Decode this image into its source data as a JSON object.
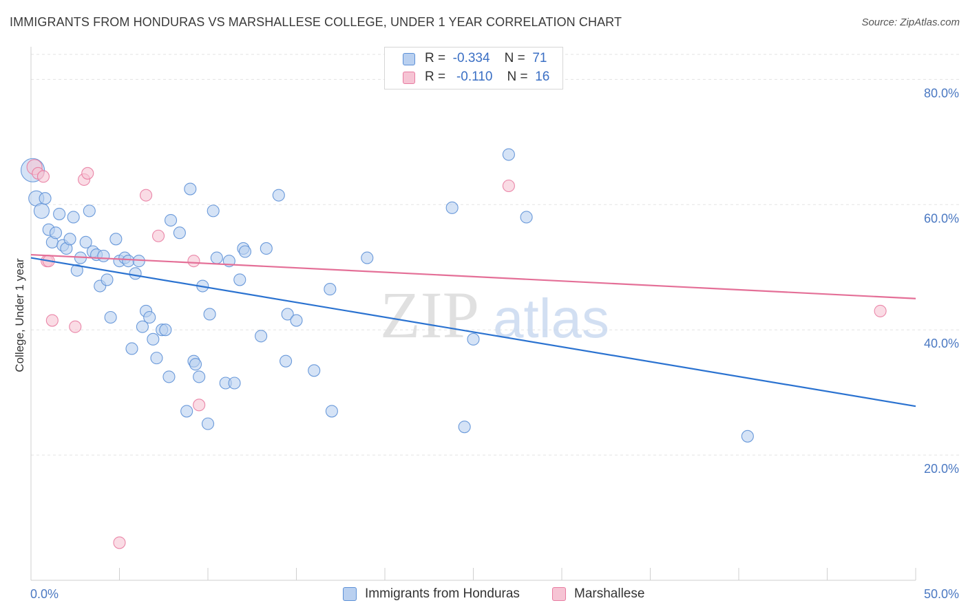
{
  "title": "IMMIGRANTS FROM HONDURAS VS MARSHALLESE COLLEGE, UNDER 1 YEAR CORRELATION CHART",
  "source": "Source: ZipAtlas.com",
  "watermark": {
    "zip": "ZIP",
    "atlas": "atlas"
  },
  "colors": {
    "blue": "#5b8fd6",
    "blue_fill": "#b9d0f0",
    "pink": "#e87aa0",
    "pink_fill": "#f6c4d4",
    "blue_line": "#2a72d0",
    "pink_line": "#e46f97",
    "tick": "#4a78c2"
  },
  "legend": {
    "rows": [
      {
        "r_label": "R =",
        "r_value": "-0.334",
        "n_label": "N =",
        "n_value": "71"
      },
      {
        "r_label": "R =",
        "r_value": "-0.110",
        "n_label": "N =",
        "n_value": "16"
      }
    ]
  },
  "chart_data": {
    "type": "scatter",
    "xlabel": "",
    "ylabel": "College, Under 1 year",
    "xlim": [
      0,
      50
    ],
    "ylim": [
      0,
      84
    ],
    "x_tick_labels": [
      "0.0%",
      "50.0%"
    ],
    "y_ticks": [
      20,
      40,
      60,
      80
    ],
    "y_tick_labels": [
      "20.0%",
      "40.0%",
      "60.0%",
      "80.0%"
    ],
    "grid": true,
    "legend_position": "bottom",
    "series": [
      {
        "name": "Immigrants from Honduras",
        "trend": {
          "x": [
            0,
            50
          ],
          "y": [
            51.5,
            27.8
          ]
        },
        "points": [
          [
            0.1,
            65.5,
            3
          ],
          [
            0.3,
            61.0,
            2
          ],
          [
            0.6,
            59.0,
            2
          ],
          [
            0.8,
            61.0,
            1
          ],
          [
            1.0,
            56.0,
            1
          ],
          [
            1.2,
            54.0,
            1
          ],
          [
            1.4,
            55.5,
            1
          ],
          [
            1.6,
            58.5,
            1
          ],
          [
            1.8,
            53.5,
            1
          ],
          [
            2.0,
            53.0,
            1
          ],
          [
            2.2,
            54.5,
            1
          ],
          [
            2.4,
            58.0,
            1
          ],
          [
            2.6,
            49.5,
            1
          ],
          [
            2.8,
            51.5,
            1
          ],
          [
            3.1,
            54.0,
            1
          ],
          [
            3.3,
            59.0,
            1
          ],
          [
            3.5,
            52.5,
            1
          ],
          [
            3.7,
            52.0,
            1
          ],
          [
            3.9,
            47.0,
            1
          ],
          [
            4.1,
            51.8,
            1
          ],
          [
            4.3,
            48.0,
            1
          ],
          [
            4.5,
            42.0,
            1
          ],
          [
            4.8,
            54.5,
            1
          ],
          [
            5.0,
            51.0,
            1
          ],
          [
            5.3,
            51.5,
            1
          ],
          [
            5.5,
            51.0,
            1
          ],
          [
            5.7,
            37.0,
            1
          ],
          [
            5.9,
            49.0,
            1
          ],
          [
            6.1,
            51.0,
            1
          ],
          [
            6.3,
            40.5,
            1
          ],
          [
            6.5,
            43.0,
            1
          ],
          [
            6.7,
            42.0,
            1
          ],
          [
            6.9,
            38.5,
            1
          ],
          [
            7.1,
            35.5,
            1
          ],
          [
            7.4,
            40.0,
            1
          ],
          [
            7.6,
            40.0,
            1
          ],
          [
            7.8,
            32.5,
            1
          ],
          [
            7.9,
            57.5,
            1
          ],
          [
            8.4,
            55.5,
            1
          ],
          [
            8.8,
            27.0,
            1
          ],
          [
            9.0,
            62.5,
            1
          ],
          [
            9.2,
            35.0,
            1
          ],
          [
            9.3,
            34.5,
            1
          ],
          [
            9.5,
            32.5,
            1
          ],
          [
            9.7,
            47.0,
            1
          ],
          [
            10.0,
            25.0,
            1
          ],
          [
            10.1,
            42.5,
            1
          ],
          [
            10.3,
            59.0,
            1
          ],
          [
            10.5,
            51.5,
            1
          ],
          [
            11.0,
            31.5,
            1
          ],
          [
            11.2,
            51.0,
            1
          ],
          [
            11.5,
            31.5,
            1
          ],
          [
            11.8,
            48.0,
            1
          ],
          [
            12.0,
            53.0,
            1
          ],
          [
            12.1,
            52.5,
            1
          ],
          [
            13.0,
            39.0,
            1
          ],
          [
            13.3,
            53.0,
            1
          ],
          [
            14.0,
            61.5,
            1
          ],
          [
            14.4,
            35.0,
            1
          ],
          [
            14.5,
            42.5,
            1
          ],
          [
            15.0,
            41.5,
            1
          ],
          [
            16.0,
            33.5,
            1
          ],
          [
            16.9,
            46.5,
            1
          ],
          [
            17.0,
            27.0,
            1
          ],
          [
            19.0,
            51.5,
            1
          ],
          [
            23.8,
            59.5,
            1
          ],
          [
            24.5,
            24.5,
            1
          ],
          [
            25.0,
            38.5,
            1
          ],
          [
            27.0,
            68.0,
            1
          ],
          [
            28.0,
            58.0,
            1
          ],
          [
            40.5,
            23.0,
            1
          ]
        ]
      },
      {
        "name": "Marshallese",
        "trend": {
          "x": [
            0,
            50
          ],
          "y": [
            52.0,
            45.0
          ]
        },
        "points": [
          [
            0.2,
            66.0,
            2
          ],
          [
            0.4,
            65.0,
            1
          ],
          [
            0.7,
            64.5,
            1
          ],
          [
            0.9,
            51.0,
            1
          ],
          [
            1.0,
            51.0,
            1
          ],
          [
            1.2,
            41.5,
            1
          ],
          [
            2.5,
            40.5,
            1
          ],
          [
            3.0,
            64.0,
            1
          ],
          [
            3.2,
            65.0,
            1
          ],
          [
            5.0,
            6.0,
            1
          ],
          [
            6.5,
            61.5,
            1
          ],
          [
            7.2,
            55.0,
            1
          ],
          [
            9.2,
            51.0,
            1
          ],
          [
            9.5,
            28.0,
            1
          ],
          [
            27.0,
            63.0,
            1
          ],
          [
            48.0,
            43.0,
            1
          ]
        ]
      }
    ]
  }
}
